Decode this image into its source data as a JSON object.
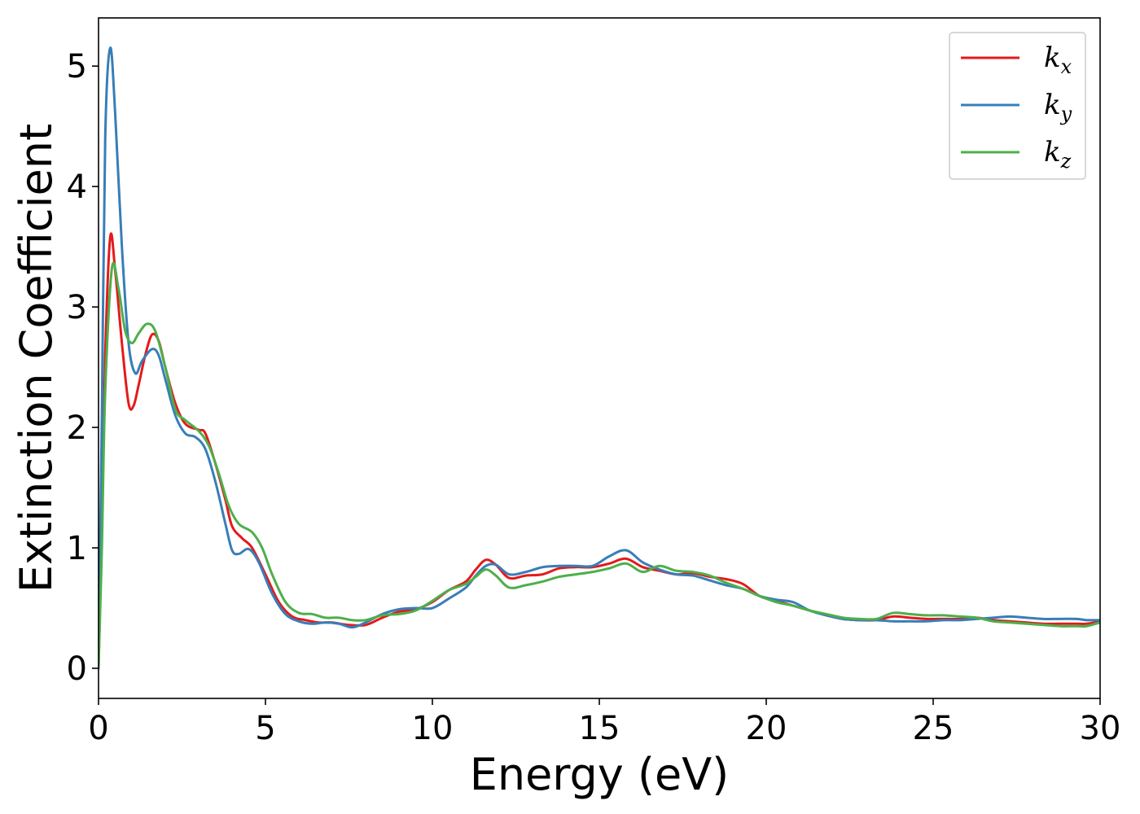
{
  "chart_data": {
    "type": "line",
    "title": "",
    "xlabel": "Energy (eV)",
    "ylabel": "Extinction Coefficient",
    "xlim": [
      0,
      30
    ],
    "ylim": [
      -0.25,
      5.4
    ],
    "xticks": [
      0,
      5,
      10,
      15,
      20,
      25,
      30
    ],
    "yticks": [
      0,
      1,
      2,
      3,
      4,
      5
    ],
    "grid": false,
    "legend_position": "top-right",
    "series": [
      {
        "name": "k",
        "subscript": "x",
        "color": "#e41a1c",
        "points": [
          [
            0,
            0
          ],
          [
            0.1,
            1.2
          ],
          [
            0.2,
            2.6
          ],
          [
            0.35,
            3.58
          ],
          [
            0.5,
            3.3
          ],
          [
            0.7,
            2.7
          ],
          [
            0.9,
            2.2
          ],
          [
            1.05,
            2.18
          ],
          [
            1.2,
            2.35
          ],
          [
            1.4,
            2.6
          ],
          [
            1.6,
            2.77
          ],
          [
            1.8,
            2.72
          ],
          [
            2.0,
            2.5
          ],
          [
            2.3,
            2.2
          ],
          [
            2.6,
            2.03
          ],
          [
            3.0,
            1.98
          ],
          [
            3.2,
            1.95
          ],
          [
            3.5,
            1.7
          ],
          [
            3.8,
            1.4
          ],
          [
            4.0,
            1.18
          ],
          [
            4.3,
            1.08
          ],
          [
            4.6,
            1.0
          ],
          [
            5.0,
            0.78
          ],
          [
            5.4,
            0.55
          ],
          [
            5.8,
            0.43
          ],
          [
            6.2,
            0.4
          ],
          [
            6.6,
            0.38
          ],
          [
            7.0,
            0.38
          ],
          [
            7.5,
            0.36
          ],
          [
            8.0,
            0.36
          ],
          [
            8.5,
            0.42
          ],
          [
            9.0,
            0.47
          ],
          [
            9.5,
            0.49
          ],
          [
            10.0,
            0.55
          ],
          [
            10.5,
            0.65
          ],
          [
            11.0,
            0.72
          ],
          [
            11.3,
            0.82
          ],
          [
            11.6,
            0.9
          ],
          [
            11.9,
            0.86
          ],
          [
            12.3,
            0.75
          ],
          [
            12.8,
            0.77
          ],
          [
            13.3,
            0.78
          ],
          [
            13.8,
            0.83
          ],
          [
            14.3,
            0.84
          ],
          [
            14.8,
            0.84
          ],
          [
            15.3,
            0.87
          ],
          [
            15.8,
            0.91
          ],
          [
            16.3,
            0.84
          ],
          [
            16.8,
            0.81
          ],
          [
            17.3,
            0.78
          ],
          [
            17.8,
            0.79
          ],
          [
            18.3,
            0.76
          ],
          [
            18.8,
            0.74
          ],
          [
            19.3,
            0.7
          ],
          [
            19.8,
            0.6
          ],
          [
            20.3,
            0.56
          ],
          [
            20.8,
            0.52
          ],
          [
            21.3,
            0.48
          ],
          [
            21.8,
            0.44
          ],
          [
            22.3,
            0.41
          ],
          [
            22.8,
            0.4
          ],
          [
            23.3,
            0.4
          ],
          [
            23.8,
            0.43
          ],
          [
            24.3,
            0.42
          ],
          [
            24.8,
            0.41
          ],
          [
            25.3,
            0.41
          ],
          [
            25.8,
            0.41
          ],
          [
            26.3,
            0.42
          ],
          [
            26.8,
            0.4
          ],
          [
            27.3,
            0.39
          ],
          [
            27.8,
            0.38
          ],
          [
            28.3,
            0.37
          ],
          [
            28.8,
            0.37
          ],
          [
            29.3,
            0.37
          ],
          [
            29.6,
            0.37
          ],
          [
            30.0,
            0.39
          ]
        ]
      },
      {
        "name": "k",
        "subscript": "y",
        "color": "#377eb8",
        "points": [
          [
            0,
            0
          ],
          [
            0.1,
            2.1
          ],
          [
            0.2,
            4.4
          ],
          [
            0.35,
            5.15
          ],
          [
            0.5,
            4.6
          ],
          [
            0.7,
            3.5
          ],
          [
            0.9,
            2.7
          ],
          [
            1.1,
            2.45
          ],
          [
            1.3,
            2.55
          ],
          [
            1.6,
            2.65
          ],
          [
            1.8,
            2.6
          ],
          [
            2.0,
            2.4
          ],
          [
            2.3,
            2.1
          ],
          [
            2.6,
            1.95
          ],
          [
            2.9,
            1.92
          ],
          [
            3.2,
            1.82
          ],
          [
            3.5,
            1.55
          ],
          [
            3.8,
            1.2
          ],
          [
            4.0,
            0.98
          ],
          [
            4.2,
            0.95
          ],
          [
            4.5,
            0.99
          ],
          [
            4.8,
            0.88
          ],
          [
            5.2,
            0.62
          ],
          [
            5.6,
            0.45
          ],
          [
            6.0,
            0.39
          ],
          [
            6.4,
            0.37
          ],
          [
            6.8,
            0.38
          ],
          [
            7.2,
            0.37
          ],
          [
            7.6,
            0.34
          ],
          [
            8.0,
            0.38
          ],
          [
            8.5,
            0.45
          ],
          [
            9.0,
            0.49
          ],
          [
            9.5,
            0.5
          ],
          [
            10.0,
            0.5
          ],
          [
            10.5,
            0.58
          ],
          [
            11.0,
            0.67
          ],
          [
            11.3,
            0.77
          ],
          [
            11.6,
            0.85
          ],
          [
            11.9,
            0.86
          ],
          [
            12.3,
            0.78
          ],
          [
            12.8,
            0.8
          ],
          [
            13.3,
            0.84
          ],
          [
            13.8,
            0.85
          ],
          [
            14.3,
            0.85
          ],
          [
            14.8,
            0.85
          ],
          [
            15.3,
            0.93
          ],
          [
            15.8,
            0.98
          ],
          [
            16.3,
            0.88
          ],
          [
            16.8,
            0.82
          ],
          [
            17.3,
            0.78
          ],
          [
            17.8,
            0.77
          ],
          [
            18.3,
            0.73
          ],
          [
            18.8,
            0.69
          ],
          [
            19.3,
            0.66
          ],
          [
            19.8,
            0.6
          ],
          [
            20.3,
            0.57
          ],
          [
            20.8,
            0.55
          ],
          [
            21.3,
            0.48
          ],
          [
            21.8,
            0.44
          ],
          [
            22.3,
            0.41
          ],
          [
            22.8,
            0.4
          ],
          [
            23.3,
            0.4
          ],
          [
            23.8,
            0.39
          ],
          [
            24.3,
            0.39
          ],
          [
            24.8,
            0.39
          ],
          [
            25.3,
            0.4
          ],
          [
            25.8,
            0.4
          ],
          [
            26.3,
            0.41
          ],
          [
            26.8,
            0.42
          ],
          [
            27.3,
            0.43
          ],
          [
            27.8,
            0.42
          ],
          [
            28.3,
            0.41
          ],
          [
            28.8,
            0.41
          ],
          [
            29.3,
            0.41
          ],
          [
            29.6,
            0.4
          ],
          [
            30.0,
            0.4
          ]
        ]
      },
      {
        "name": "k",
        "subscript": "z",
        "color": "#4daf4a",
        "points": [
          [
            0,
            0
          ],
          [
            0.1,
            1.0
          ],
          [
            0.2,
            2.3
          ],
          [
            0.4,
            3.32
          ],
          [
            0.6,
            3.15
          ],
          [
            0.8,
            2.8
          ],
          [
            1.0,
            2.7
          ],
          [
            1.2,
            2.78
          ],
          [
            1.45,
            2.86
          ],
          [
            1.7,
            2.8
          ],
          [
            2.0,
            2.5
          ],
          [
            2.3,
            2.15
          ],
          [
            2.6,
            2.06
          ],
          [
            3.0,
            1.97
          ],
          [
            3.3,
            1.85
          ],
          [
            3.6,
            1.62
          ],
          [
            3.9,
            1.35
          ],
          [
            4.2,
            1.2
          ],
          [
            4.6,
            1.13
          ],
          [
            4.9,
            1.0
          ],
          [
            5.2,
            0.78
          ],
          [
            5.6,
            0.55
          ],
          [
            6.0,
            0.46
          ],
          [
            6.4,
            0.45
          ],
          [
            6.8,
            0.42
          ],
          [
            7.2,
            0.42
          ],
          [
            7.6,
            0.4
          ],
          [
            8.0,
            0.4
          ],
          [
            8.5,
            0.44
          ],
          [
            9.0,
            0.45
          ],
          [
            9.5,
            0.48
          ],
          [
            10.0,
            0.56
          ],
          [
            10.5,
            0.65
          ],
          [
            11.0,
            0.7
          ],
          [
            11.3,
            0.76
          ],
          [
            11.6,
            0.82
          ],
          [
            11.9,
            0.77
          ],
          [
            12.3,
            0.67
          ],
          [
            12.8,
            0.69
          ],
          [
            13.3,
            0.72
          ],
          [
            13.8,
            0.76
          ],
          [
            14.3,
            0.78
          ],
          [
            14.8,
            0.8
          ],
          [
            15.3,
            0.83
          ],
          [
            15.8,
            0.87
          ],
          [
            16.3,
            0.8
          ],
          [
            16.8,
            0.85
          ],
          [
            17.3,
            0.81
          ],
          [
            17.8,
            0.8
          ],
          [
            18.3,
            0.77
          ],
          [
            18.8,
            0.71
          ],
          [
            19.3,
            0.66
          ],
          [
            19.8,
            0.6
          ],
          [
            20.3,
            0.55
          ],
          [
            20.8,
            0.52
          ],
          [
            21.3,
            0.48
          ],
          [
            21.8,
            0.45
          ],
          [
            22.3,
            0.42
          ],
          [
            22.8,
            0.41
          ],
          [
            23.3,
            0.41
          ],
          [
            23.8,
            0.46
          ],
          [
            24.3,
            0.45
          ],
          [
            24.8,
            0.44
          ],
          [
            25.3,
            0.44
          ],
          [
            25.8,
            0.43
          ],
          [
            26.3,
            0.42
          ],
          [
            26.8,
            0.39
          ],
          [
            27.3,
            0.38
          ],
          [
            27.8,
            0.37
          ],
          [
            28.3,
            0.36
          ],
          [
            28.8,
            0.35
          ],
          [
            29.3,
            0.35
          ],
          [
            29.6,
            0.35
          ],
          [
            30.0,
            0.38
          ]
        ]
      }
    ]
  }
}
